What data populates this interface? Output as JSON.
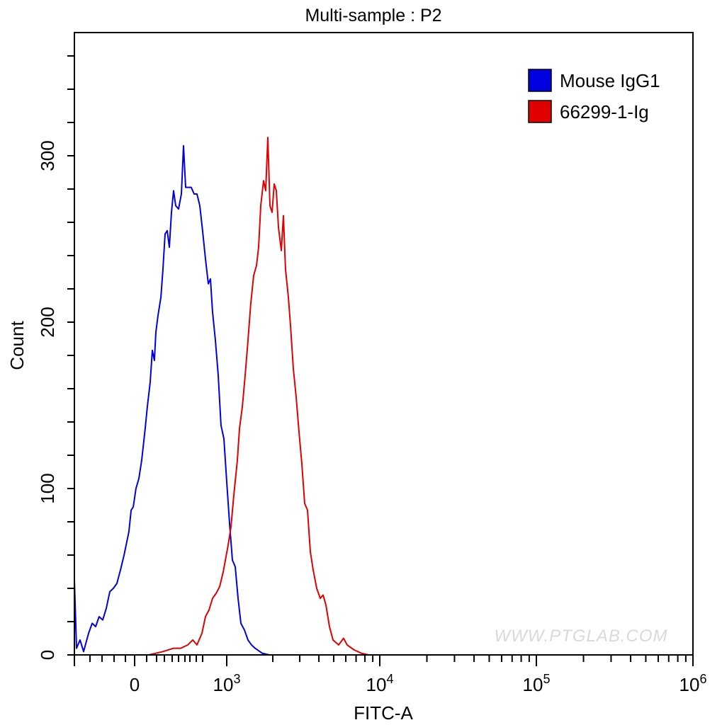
{
  "chart_data": {
    "type": "line",
    "title": "Multi-sample : P2",
    "xlabel": "FITC-A",
    "ylabel": "Count",
    "x_scale": "biexponential",
    "xlim": [
      -654,
      1000000
    ],
    "ylim": [
      0,
      374
    ],
    "grid": false,
    "legend_position": "top-right",
    "y_ticks": [
      {
        "value": 0,
        "label": "0"
      },
      {
        "value": 100,
        "label": "100"
      },
      {
        "value": 200,
        "label": "200"
      },
      {
        "value": 300,
        "label": "300"
      }
    ],
    "x_ticks": [
      {
        "value": 0,
        "base": "0",
        "exp": ""
      },
      {
        "value": 1000,
        "base": "10",
        "exp": "3"
      },
      {
        "value": 10000,
        "base": "10",
        "exp": "4"
      },
      {
        "value": 100000,
        "base": "10",
        "exp": "5"
      },
      {
        "value": 1000000,
        "base": "10",
        "exp": "6"
      }
    ],
    "series": [
      {
        "name": "Mouse IgG1",
        "color": "#0000e0",
        "x": [
          -654,
          -631,
          -592,
          -554,
          -500,
          -461,
          -423,
          -385,
          -346,
          -308,
          -269,
          -231,
          -192,
          -154,
          -115,
          -92,
          -62,
          -38,
          -15,
          15,
          46,
          77,
          115,
          138,
          169,
          192,
          215,
          231,
          254,
          285,
          308,
          331,
          354,
          377,
          400,
          423,
          446,
          477,
          508,
          531,
          554,
          585,
          615,
          646,
          677,
          708,
          738,
          769,
          800,
          823,
          846,
          877,
          908,
          938,
          969,
          1000,
          1044,
          1089,
          1137,
          1186,
          1238,
          1305,
          1377,
          1452,
          1531,
          1704,
          1896,
          2904,
          3230
        ],
        "y": [
          45,
          4,
          9,
          2,
          13,
          19,
          17,
          23,
          21,
          28,
          38,
          40,
          43,
          51,
          60,
          66,
          74,
          87,
          89,
          100,
          106,
          117,
          136,
          149,
          164,
          183,
          177,
          194,
          204,
          215,
          232,
          253,
          255,
          245,
          266,
          279,
          270,
          268,
          277,
          306,
          281,
          281,
          281,
          277,
          277,
          270,
          255,
          238,
          223,
          226,
          206,
          189,
          168,
          138,
          130,
          104,
          79,
          57,
          53,
          34,
          19,
          15,
          9,
          6,
          4,
          1,
          0,
          0,
          0
        ]
      },
      {
        "name": "66299-1-Ig",
        "color": "#e00000",
        "x": [
          0,
          154,
          308,
          423,
          500,
          577,
          631,
          677,
          731,
          769,
          808,
          846,
          885,
          923,
          962,
          985,
          1022,
          1066,
          1113,
          1173,
          1211,
          1264,
          1320,
          1377,
          1436,
          1499,
          1564,
          1615,
          1668,
          1741,
          1797,
          1856,
          1916,
          1978,
          2043,
          2109,
          2177,
          2272,
          2345,
          2421,
          2527,
          2610,
          2723,
          2843,
          2967,
          3097,
          3230,
          3372,
          3519,
          3673,
          3873,
          4084,
          4264,
          4450,
          4693,
          4948,
          5383,
          5803,
          6120,
          6808,
          7579,
          8432
        ],
        "y": [
          0,
          0,
          2,
          4,
          4,
          6,
          9,
          6,
          13,
          23,
          27,
          34,
          37,
          41,
          50,
          57,
          66,
          77,
          96,
          117,
          136,
          149,
          168,
          189,
          211,
          228,
          234,
          245,
          270,
          285,
          279,
          311,
          270,
          266,
          283,
          279,
          257,
          243,
          264,
          232,
          215,
          198,
          172,
          155,
          134,
          115,
          91,
          87,
          62,
          51,
          40,
          34,
          36,
          30,
          17,
          9,
          6,
          10,
          6,
          3,
          1,
          0
        ]
      }
    ]
  },
  "watermark": "WWW.PTGLAB.COM"
}
